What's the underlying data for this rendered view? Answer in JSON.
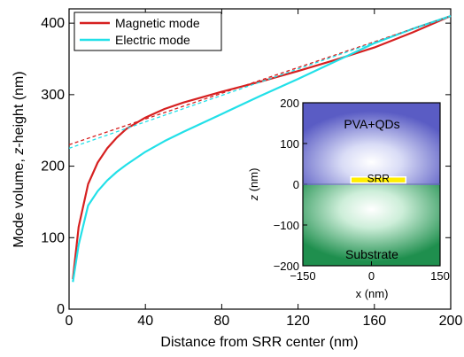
{
  "chart_data": [
    {
      "type": "line",
      "title": "",
      "xlabel": "Distance from SRR center (nm)",
      "ylabel_parts": [
        "Mode volume, ",
        "z",
        "-height (nm)"
      ],
      "xlim": [
        0,
        200
      ],
      "ylim": [
        0,
        420
      ],
      "xticks": [
        0,
        40,
        80,
        120,
        160,
        200
      ],
      "yticks": [
        0,
        100,
        200,
        300,
        400
      ],
      "grid": false,
      "legend_position": "top-left",
      "series": [
        {
          "name": "Magnetic mode",
          "color": "#d62020",
          "style": "solid",
          "x": [
            2,
            5,
            10,
            15,
            20,
            25,
            30,
            40,
            50,
            60,
            80,
            100,
            120,
            140,
            160,
            180,
            200
          ],
          "y": [
            42,
            115,
            175,
            205,
            225,
            240,
            252,
            268,
            280,
            289,
            304,
            318,
            333,
            349,
            366,
            387,
            410
          ]
        },
        {
          "name": "Electric mode",
          "color": "#22e0e8",
          "style": "solid",
          "x": [
            2,
            5,
            10,
            15,
            20,
            25,
            30,
            40,
            50,
            60,
            80,
            100,
            120,
            140,
            160,
            180,
            200
          ],
          "y": [
            38,
            90,
            145,
            165,
            180,
            192,
            202,
            220,
            235,
            248,
            273,
            298,
            322,
            347,
            372,
            392,
            410
          ]
        },
        {
          "name": "",
          "color": "#d62020",
          "style": "dashed",
          "x": [
            0,
            200
          ],
          "y": [
            230,
            410
          ]
        },
        {
          "name": "",
          "color": "#22e0e8",
          "style": "dashed",
          "x": [
            0,
            200
          ],
          "y": [
            225,
            410
          ]
        }
      ]
    },
    {
      "type": "heatmap",
      "title": "",
      "xlabel": "x (nm)",
      "ylabel_parts": [
        "z",
        " (nm)"
      ],
      "xlim": [
        -150,
        150
      ],
      "ylim": [
        -200,
        200
      ],
      "xticks": [
        -150,
        0,
        150
      ],
      "yticks": [
        -200,
        -100,
        0,
        100,
        200
      ],
      "tick_labels_x": [
        "−150",
        "0",
        "150"
      ],
      "tick_labels_y": [
        "−200",
        "−100",
        "0",
        "100",
        "200"
      ],
      "regions": [
        {
          "label": "PVA+QDs",
          "z_range": [
            0,
            200
          ],
          "color": "#6f70cc"
        },
        {
          "label": "Substrate",
          "z_range": [
            -200,
            0
          ],
          "color": "#2f9a5a"
        }
      ],
      "srr": {
        "label": "SRR",
        "x_range": [
          -45,
          75
        ],
        "z_range": [
          3,
          18
        ],
        "color": "#ffee00"
      }
    }
  ]
}
